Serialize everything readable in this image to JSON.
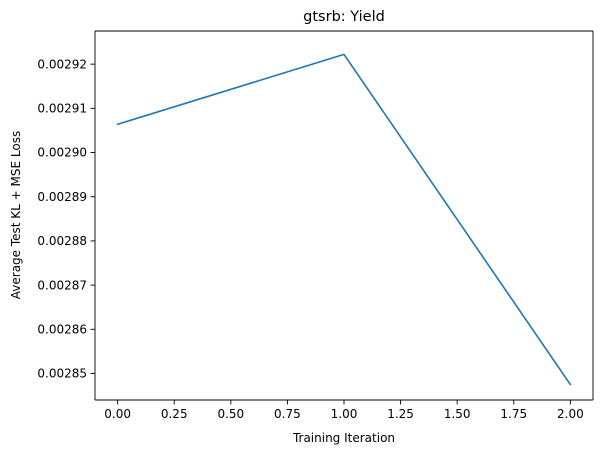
{
  "chart_data": {
    "type": "line",
    "title": "gtsrb: Yield",
    "xlabel": "Training Iteration",
    "ylabel": "Average Test KL + MSE Loss",
    "xlim": [
      -0.1,
      2.1
    ],
    "ylim": [
      0.002844,
      0.0029275
    ],
    "x_ticks": [
      0.0,
      0.25,
      0.5,
      0.75,
      1.0,
      1.25,
      1.5,
      1.75,
      2.0
    ],
    "x_tick_labels": [
      "0.00",
      "0.25",
      "0.50",
      "0.75",
      "1.00",
      "1.25",
      "1.50",
      "1.75",
      "2.00"
    ],
    "y_ticks": [
      0.00285,
      0.00286,
      0.00287,
      0.00288,
      0.00289,
      0.0029,
      0.00291,
      0.00292
    ],
    "y_tick_labels": [
      "0.00285",
      "0.00286",
      "0.00287",
      "0.00288",
      "0.00289",
      "0.00290",
      "0.00291",
      "0.00292"
    ],
    "grid": false,
    "series": [
      {
        "color": "#1f77b4",
        "x": [
          0,
          1,
          2
        ],
        "y": [
          0.0029064,
          0.0029222,
          0.0028475
        ]
      }
    ]
  }
}
